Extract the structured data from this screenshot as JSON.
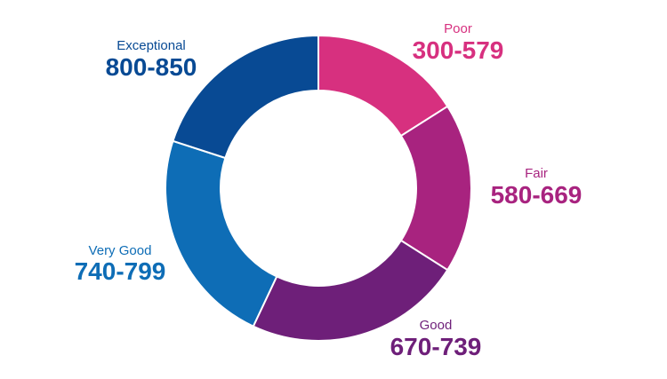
{
  "chart_data": {
    "type": "pie",
    "variant": "donut",
    "title": "",
    "segments": [
      {
        "name": "Poor",
        "range": "300-579",
        "low": 300,
        "high": 579,
        "color": "#d7307f"
      },
      {
        "name": "Fair",
        "range": "580-669",
        "low": 580,
        "high": 669,
        "color": "#a8237f"
      },
      {
        "name": "Good",
        "range": "670-739",
        "low": 670,
        "high": 739,
        "color": "#6e1f79"
      },
      {
        "name": "Very Good",
        "range": "740-799",
        "low": 740,
        "high": 799,
        "color": "#0e6db6"
      },
      {
        "name": "Exceptional",
        "range": "800-850",
        "low": 800,
        "high": 850,
        "color": "#084a94"
      }
    ],
    "slice_fractions": [
      0.16,
      0.18,
      0.23,
      0.23,
      0.2
    ]
  }
}
